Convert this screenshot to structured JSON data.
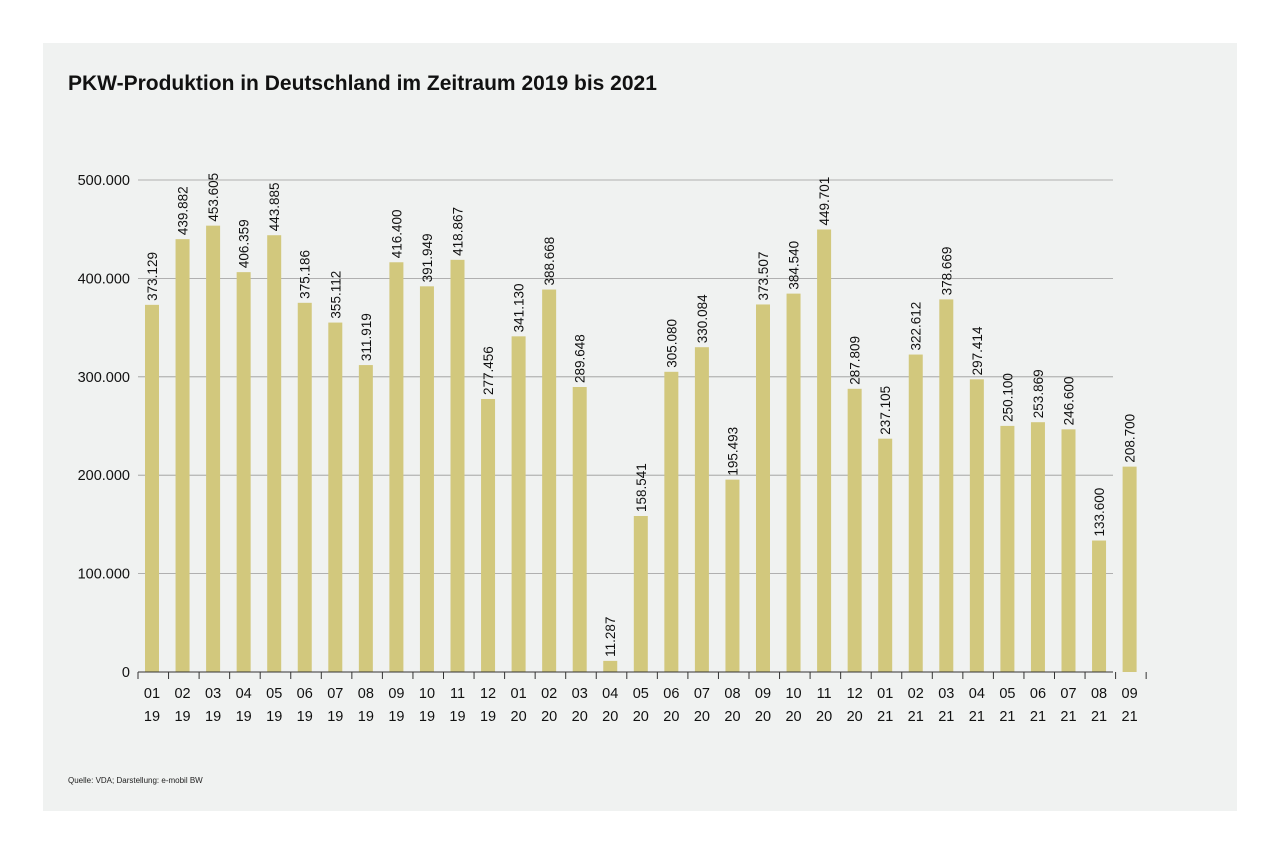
{
  "header": {
    "title": "PKW-Produktion in Deutschland im Zeitraum 2019 bis 2021"
  },
  "footer": {
    "source": "Quelle: VDA; Darstellung: e-mobil BW"
  },
  "colors": {
    "bar": "#d2c87d",
    "background": "#f0f2f1",
    "grid": "#9a9a9a",
    "axis": "#333333"
  },
  "chart_data": {
    "type": "bar",
    "title": "PKW-Produktion in Deutschland im Zeitraum 2019 bis 2021",
    "xlabel": "",
    "ylabel": "",
    "ylim": [
      0,
      500000
    ],
    "grid": true,
    "yticks": [
      {
        "value": 0,
        "label": "0"
      },
      {
        "value": 100000,
        "label": "100.000"
      },
      {
        "value": 200000,
        "label": "200.000"
      },
      {
        "value": 300000,
        "label": "300.000"
      },
      {
        "value": 400000,
        "label": "400.000"
      },
      {
        "value": 500000,
        "label": "500.000"
      }
    ],
    "categories": [
      {
        "month": "01",
        "year": "19"
      },
      {
        "month": "02",
        "year": "19"
      },
      {
        "month": "03",
        "year": "19"
      },
      {
        "month": "04",
        "year": "19"
      },
      {
        "month": "05",
        "year": "19"
      },
      {
        "month": "06",
        "year": "19"
      },
      {
        "month": "07",
        "year": "19"
      },
      {
        "month": "08",
        "year": "19"
      },
      {
        "month": "09",
        "year": "19"
      },
      {
        "month": "10",
        "year": "19"
      },
      {
        "month": "11",
        "year": "19"
      },
      {
        "month": "12",
        "year": "19"
      },
      {
        "month": "01",
        "year": "20"
      },
      {
        "month": "02",
        "year": "20"
      },
      {
        "month": "03",
        "year": "20"
      },
      {
        "month": "04",
        "year": "20"
      },
      {
        "month": "05",
        "year": "20"
      },
      {
        "month": "06",
        "year": "20"
      },
      {
        "month": "07",
        "year": "20"
      },
      {
        "month": "08",
        "year": "20"
      },
      {
        "month": "09",
        "year": "20"
      },
      {
        "month": "10",
        "year": "20"
      },
      {
        "month": "11",
        "year": "20"
      },
      {
        "month": "12",
        "year": "20"
      },
      {
        "month": "01",
        "year": "21"
      },
      {
        "month": "02",
        "year": "21"
      },
      {
        "month": "03",
        "year": "21"
      },
      {
        "month": "04",
        "year": "21"
      },
      {
        "month": "05",
        "year": "21"
      },
      {
        "month": "06",
        "year": "21"
      },
      {
        "month": "07",
        "year": "21"
      },
      {
        "month": "08",
        "year": "21"
      },
      {
        "month": "09",
        "year": "21"
      }
    ],
    "values": [
      373129,
      439882,
      453605,
      406359,
      443885,
      375186,
      355112,
      311919,
      416400,
      391949,
      418867,
      277456,
      341130,
      388668,
      289648,
      11287,
      158541,
      305080,
      330084,
      195493,
      373507,
      384540,
      449701,
      287809,
      237105,
      322612,
      378669,
      297414,
      250100,
      253869,
      246600,
      133600,
      208700
    ],
    "value_labels": [
      "373.129",
      "439.882",
      "453.605",
      "406.359",
      "443.885",
      "375.186",
      "355.112",
      "311.919",
      "416.400",
      "391.949",
      "418.867",
      "277.456",
      "341.130",
      "388.668",
      "289.648",
      "11.287",
      "158.541",
      "305.080",
      "330.084",
      "195.493",
      "373.507",
      "384.540",
      "449.701",
      "287.809",
      "237.105",
      "322.612",
      "378.669",
      "297.414",
      "250.100",
      "253.869",
      "246.600",
      "133.600",
      "208.700"
    ]
  }
}
